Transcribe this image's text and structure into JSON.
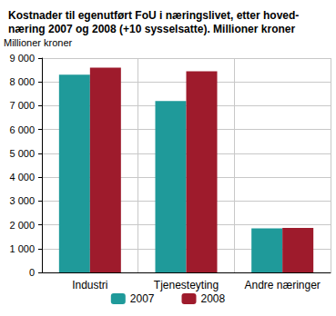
{
  "chart_data": {
    "type": "bar",
    "title": "Kostnader til egenutført FoU i næringslivet, etter hoved-\nnæring 2007 og 2008 (+10 sysselsatte). Millioner kroner",
    "y_label": "Millioner kroner",
    "categories": [
      "Industri",
      "Tjenesteyting",
      "Andre næringer"
    ],
    "series": [
      {
        "name": "2007",
        "color": "#1f9a9a",
        "values": [
          8300,
          7200,
          1850
        ]
      },
      {
        "name": "2008",
        "color": "#9e1b2c",
        "values": [
          8600,
          8450,
          1870
        ]
      }
    ],
    "ylim": [
      0,
      9000
    ],
    "yticks": [
      0,
      {
        "value": 1000,
        "label": "1 000"
      },
      {
        "value": 2000,
        "label": "2 000"
      },
      {
        "value": 3000,
        "label": "3 000"
      },
      {
        "value": 4000,
        "label": "4 000"
      },
      {
        "value": 5000,
        "label": "5 000"
      },
      {
        "value": 6000,
        "label": "6 000"
      },
      {
        "value": 7000,
        "label": "7 000"
      },
      {
        "value": 8000,
        "label": "8 000"
      },
      {
        "value": 9000,
        "label": "9 000"
      }
    ],
    "grid": true,
    "legend": "bottom"
  }
}
